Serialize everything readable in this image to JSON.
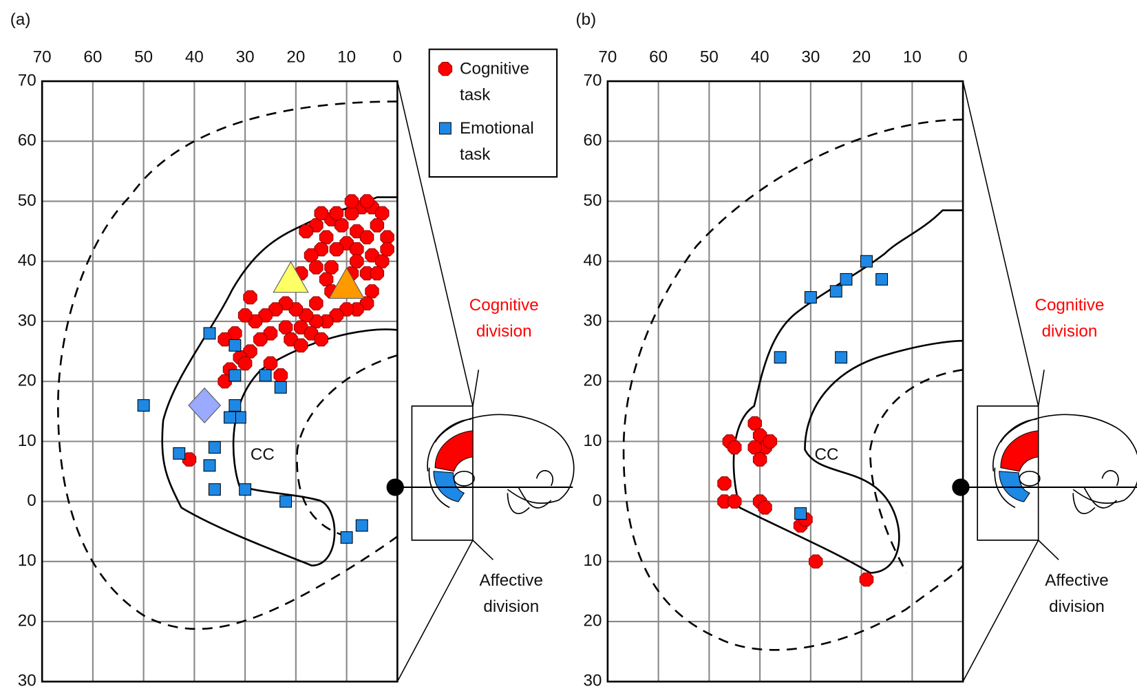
{
  "chart_data": [
    {
      "type": "scatter",
      "label": "(a)",
      "annotations": [
        "CC",
        "Cognitive division",
        "Affective division"
      ],
      "xlim": [
        70,
        0
      ],
      "ylim": [
        -30,
        70
      ],
      "xticks": [
        70,
        60,
        50,
        40,
        30,
        20,
        10,
        0
      ],
      "yticks": [
        {
          "value": -30,
          "label": "30"
        },
        {
          "value": -20,
          "label": "20"
        },
        {
          "value": -10,
          "label": "10"
        },
        0,
        10,
        20,
        30,
        40,
        50,
        60,
        70
      ],
      "grid": true,
      "series": [
        {
          "name": "Cognitive task",
          "color": "#ff0000",
          "marker": "octagon",
          "x": [
            7,
            5,
            3,
            9,
            13,
            16,
            18,
            11,
            14,
            8,
            4,
            2,
            6,
            10,
            15,
            17,
            12,
            8,
            5,
            3,
            13,
            16,
            6,
            4,
            19,
            9,
            14,
            5,
            6,
            8,
            10,
            12,
            14,
            16,
            18,
            20,
            22,
            24,
            26,
            28,
            30,
            29,
            32,
            34,
            25,
            22,
            19,
            17,
            15,
            21,
            27,
            29,
            31,
            33,
            30,
            25,
            23,
            34,
            19,
            16,
            10,
            13,
            8,
            2,
            12,
            15,
            9,
            6,
            41
          ],
          "y": [
            49,
            49,
            48,
            48,
            47,
            46,
            45,
            46,
            44,
            45,
            46,
            44,
            44,
            43,
            42,
            41,
            42,
            42,
            41,
            40,
            39,
            39,
            38,
            38,
            38,
            38,
            37,
            35,
            33,
            32,
            32,
            31,
            30,
            30,
            31,
            32,
            33,
            32,
            31,
            30,
            31,
            34,
            28,
            27,
            28,
            29,
            29,
            28,
            27,
            27,
            27,
            25,
            24,
            22,
            23,
            23,
            21,
            20,
            26,
            33,
            36,
            35,
            40,
            42,
            48,
            48,
            50,
            50,
            7
          ]
        },
        {
          "name": "Emotional task",
          "color": "#1e88e5",
          "marker": "square",
          "x": [
            50,
            37,
            32,
            32,
            26,
            23,
            32,
            31,
            33,
            43,
            36,
            37,
            36,
            30,
            22,
            10,
            7
          ],
          "y": [
            16,
            28,
            26,
            21,
            21,
            19,
            16,
            14,
            14,
            8,
            9,
            6,
            2,
            2,
            0,
            -6,
            -4
          ]
        },
        {
          "color": "#ffff66",
          "marker": "triangle",
          "x": [
            21
          ],
          "y": [
            37
          ]
        },
        {
          "color": "#ff9900",
          "marker": "triangle",
          "x": [
            10
          ],
          "y": [
            36
          ]
        },
        {
          "color": "#99aaff",
          "marker": "diamond",
          "x": [
            38
          ],
          "y": [
            16
          ]
        }
      ]
    },
    {
      "type": "scatter",
      "label": "(b)",
      "annotations": [
        "CC",
        "Cognitive division",
        "Affective division"
      ],
      "xlim": [
        70,
        0
      ],
      "ylim": [
        -30,
        70
      ],
      "xticks": [
        70,
        60,
        50,
        40,
        30,
        20,
        10,
        0
      ],
      "yticks": [
        {
          "value": -30,
          "label": "30"
        },
        {
          "value": -20,
          "label": "20"
        },
        {
          "value": -10,
          "label": "10"
        },
        0,
        10,
        20,
        30,
        40,
        50,
        60,
        70
      ],
      "grid": true,
      "series": [
        {
          "color": "#ff0000",
          "marker": "octagon",
          "x": [
            46,
            45,
            41,
            40,
            39,
            41,
            40,
            38,
            47,
            47,
            45,
            40,
            39,
            32,
            31,
            29,
            19
          ],
          "y": [
            10,
            9,
            13,
            11,
            9,
            9,
            7,
            10,
            3,
            0,
            0,
            0,
            -1,
            -4,
            -3,
            -10,
            -13
          ]
        },
        {
          "color": "#1e88e5",
          "marker": "square",
          "x": [
            19,
            23,
            25,
            30,
            16,
            24,
            36,
            32
          ],
          "y": [
            40,
            37,
            35,
            34,
            37,
            24,
            24,
            -2
          ]
        }
      ]
    }
  ]
}
